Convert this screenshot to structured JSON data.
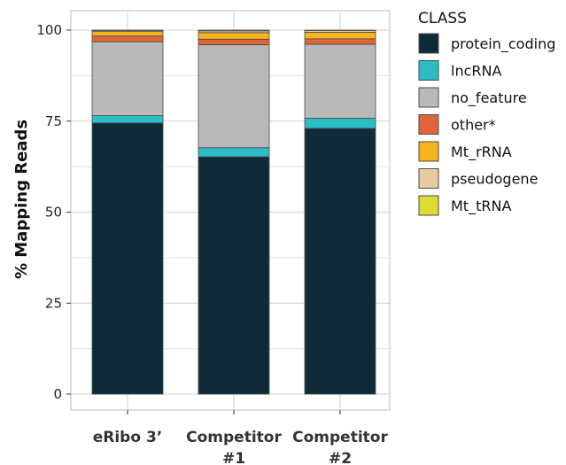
{
  "chart_data": {
    "type": "bar",
    "stacked": true,
    "ylabel": "% Mapping Reads",
    "ylim": [
      0,
      100
    ],
    "yticks": [
      0,
      25,
      50,
      75,
      100
    ],
    "grid": true,
    "categories": [
      [
        "eRibo 3’"
      ],
      [
        "Competitor",
        "#1"
      ],
      [
        "Competitor",
        "#2"
      ]
    ],
    "legend": {
      "title": "CLASS",
      "placement": "right"
    },
    "series": [
      {
        "name": "protein_coding",
        "color": "#0f2b3a",
        "values": [
          74.5,
          65.2,
          73.0
        ]
      },
      {
        "name": "lncRNA",
        "color": "#2bbcc4",
        "values": [
          2.0,
          2.5,
          2.8
        ]
      },
      {
        "name": "no_feature",
        "color": "#b9b9b9",
        "values": [
          20.3,
          28.3,
          20.3
        ]
      },
      {
        "name": "other*",
        "color": "#e0643a",
        "values": [
          1.6,
          1.5,
          1.5
        ]
      },
      {
        "name": "Mt_rRNA",
        "color": "#f8b41c",
        "values": [
          1.2,
          1.8,
          1.8
        ]
      },
      {
        "name": "pseudogene",
        "color": "#e8c9a0",
        "values": [
          0.3,
          0.5,
          0.5
        ]
      },
      {
        "name": "Mt_tRNA",
        "color": "#dcdc33",
        "values": [
          0.1,
          0.2,
          0.1
        ]
      }
    ]
  }
}
